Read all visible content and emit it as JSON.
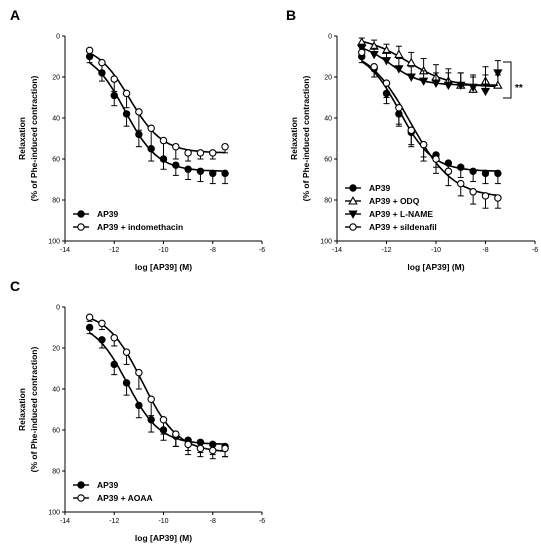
{
  "chart_data": [
    {
      "panel": "A",
      "type": "scatter",
      "xlabel": "log [AP39] (M)",
      "ylabel": "(% of Phe-induced contraction)",
      "ylabel_top": "Relaxation",
      "xlim": [
        -14,
        -6
      ],
      "ylim": [
        0,
        100
      ],
      "y_inverted": true,
      "xticks": [
        "-14",
        "-12",
        "-10",
        "-8",
        "-6"
      ],
      "yticks": [
        "0",
        "20",
        "40",
        "60",
        "80",
        "100"
      ],
      "legend_position": "bottom-left",
      "series": [
        {
          "name": "AP39",
          "marker": "filled-circle",
          "x": [
            -13,
            -12.5,
            -12,
            -11.5,
            -11,
            -10.5,
            -10,
            -9.5,
            -9,
            -8.5,
            -8,
            -7.5
          ],
          "y": [
            10,
            18,
            29,
            38,
            48,
            55,
            60,
            63,
            65,
            66,
            67,
            67
          ],
          "err": [
            3,
            4,
            5,
            6,
            6,
            6,
            5,
            5,
            5,
            5,
            5,
            5
          ]
        },
        {
          "name": "AP39 + indomethacin",
          "marker": "open-circle",
          "x": [
            -13,
            -12.5,
            -12,
            -11.5,
            -11,
            -10.5,
            -10,
            -9.5,
            -9,
            -8.5,
            -8,
            -7.5
          ],
          "y": [
            7,
            13,
            21,
            28,
            37,
            45,
            51,
            54,
            57,
            57,
            57,
            54
          ],
          "err": [
            3,
            4,
            6,
            7,
            9,
            10,
            10,
            6,
            4,
            3,
            3,
            3
          ]
        }
      ]
    },
    {
      "panel": "B",
      "type": "scatter",
      "xlabel": "log [AP39] (M)",
      "ylabel": "(% of Phe-induced contraction)",
      "ylabel_top": "Relaxation",
      "xlim": [
        -14,
        -6
      ],
      "ylim": [
        0,
        100
      ],
      "y_inverted": true,
      "xticks": [
        "-14",
        "-12",
        "-10",
        "-8",
        "-6"
      ],
      "yticks": [
        "0",
        "20",
        "40",
        "60",
        "80",
        "100"
      ],
      "legend_position": "bottom-left",
      "annotation": "**",
      "series": [
        {
          "name": "AP39",
          "marker": "filled-circle",
          "x": [
            -13,
            -12.5,
            -12,
            -11.5,
            -11,
            -10.5,
            -10,
            -9.5,
            -9,
            -8.5,
            -8,
            -7.5
          ],
          "y": [
            10,
            16,
            28,
            38,
            47,
            53,
            58,
            62,
            64,
            66,
            67,
            67
          ],
          "err": [
            3,
            4,
            5,
            6,
            6,
            6,
            6,
            5,
            5,
            5,
            5,
            5
          ]
        },
        {
          "name": "AP39 + ODQ",
          "marker": "open-triangle-up",
          "x": [
            -13,
            -12.5,
            -12,
            -11.5,
            -11,
            -10.5,
            -10,
            -9.5,
            -9,
            -8.5,
            -8,
            -7.5
          ],
          "y": [
            3,
            5,
            7,
            9,
            13,
            17,
            20,
            22,
            24,
            26,
            22,
            24
          ],
          "err": [
            2,
            3,
            3,
            4,
            5,
            6,
            6,
            6,
            6,
            6,
            7,
            5
          ]
        },
        {
          "name": "AP39 + L-NAME",
          "marker": "filled-triangle-down",
          "x": [
            -13,
            -12.5,
            -12,
            -11.5,
            -11,
            -10.5,
            -10,
            -9.5,
            -9,
            -8.5,
            -8,
            -7.5
          ],
          "y": [
            6,
            9,
            12,
            16,
            20,
            22,
            23,
            24,
            24,
            25,
            27,
            18
          ],
          "err": [
            2,
            3,
            4,
            5,
            5,
            5,
            5,
            6,
            6,
            6,
            8,
            6
          ]
        },
        {
          "name": "AP39 + sildenafil",
          "marker": "open-circle",
          "x": [
            -13,
            -12.5,
            -12,
            -11.5,
            -11,
            -10.5,
            -10,
            -9.5,
            -9,
            -8.5,
            -8,
            -7.5
          ],
          "y": [
            8,
            15,
            23,
            35,
            46,
            53,
            60,
            66,
            72,
            76,
            78,
            79
          ],
          "err": [
            3,
            5,
            7,
            8,
            8,
            8,
            7,
            7,
            6,
            6,
            6,
            5
          ]
        }
      ]
    },
    {
      "panel": "C",
      "type": "scatter",
      "xlabel": "log [AP39] (M)",
      "ylabel": "(% of Phe-induced contraction)",
      "ylabel_top": "Relaxation",
      "xlim": [
        -14,
        -6
      ],
      "ylim": [
        0,
        100
      ],
      "y_inverted": true,
      "xticks": [
        "-14",
        "-12",
        "-10",
        "-8",
        "-6"
      ],
      "yticks": [
        "0",
        "20",
        "40",
        "60",
        "80",
        "100"
      ],
      "legend_position": "bottom-left",
      "series": [
        {
          "name": "AP39",
          "marker": "filled-circle",
          "x": [
            -13,
            -12.5,
            -12,
            -11.5,
            -11,
            -10.5,
            -10,
            -9.5,
            -9,
            -8.5,
            -8,
            -7.5
          ],
          "y": [
            10,
            16,
            28,
            37,
            48,
            55,
            60,
            63,
            65,
            66,
            67,
            68
          ],
          "err": [
            3,
            4,
            5,
            6,
            6,
            6,
            5,
            5,
            5,
            5,
            5,
            5
          ]
        },
        {
          "name": "AP39 + AOAA",
          "marker": "open-circle",
          "x": [
            -13,
            -12.5,
            -12,
            -11.5,
            -11,
            -10.5,
            -10,
            -9.5,
            -9,
            -8.5,
            -8,
            -7.5
          ],
          "y": [
            5,
            8,
            15,
            22,
            32,
            45,
            55,
            62,
            67,
            69,
            70,
            69
          ],
          "err": [
            2,
            3,
            4,
            6,
            8,
            8,
            7,
            6,
            5,
            4,
            4,
            4
          ]
        }
      ]
    }
  ]
}
